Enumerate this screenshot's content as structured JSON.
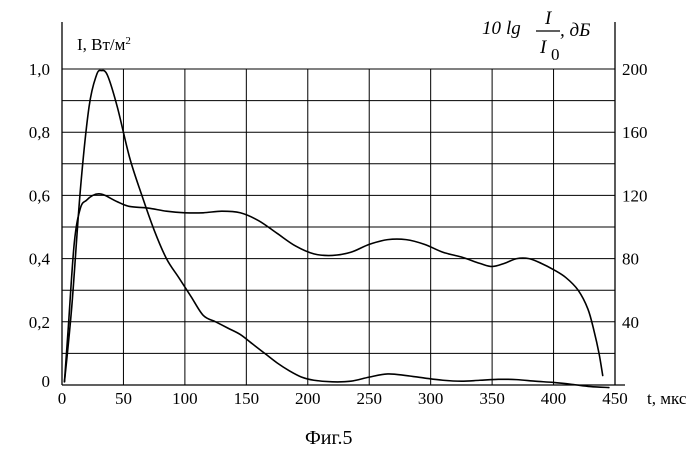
{
  "chart_data": {
    "type": "line",
    "caption": "Фиг.5",
    "xlabel": "t, мкс",
    "ylabel_left": {
      "text": "I, Вт/м",
      "superscript": "2"
    },
    "ylabel_right": {
      "prefix": "10",
      "func": "lg",
      "numerator": "I",
      "denominator": "I",
      "denominator_sub": "0",
      "suffix": ", дБ"
    },
    "xlim": [
      0,
      450
    ],
    "ylim_left": [
      0,
      1.0
    ],
    "ylim_right": [
      0,
      200
    ],
    "x_ticks": [
      0,
      50,
      100,
      150,
      200,
      250,
      300,
      350,
      400,
      450
    ],
    "x_tick_labels": [
      "0",
      "50",
      "100",
      "150",
      "200",
      "250",
      "300",
      "350",
      "400",
      "450"
    ],
    "y_left_ticks": [
      0,
      0.2,
      0.4,
      0.6,
      0.8,
      1.0
    ],
    "y_left_tick_labels": [
      "0",
      "0,2",
      "0,4",
      "0,6",
      "0,8",
      "1,0"
    ],
    "y_right_ticks": [
      40,
      80,
      120,
      160,
      200
    ],
    "y_right_tick_labels": [
      "40",
      "80",
      "120",
      "160",
      "200"
    ],
    "grid": true,
    "series": [
      {
        "axis": "left",
        "x": [
          2,
          8,
          15,
          22,
          28,
          32,
          37,
          45,
          55,
          65,
          75,
          85,
          95,
          105,
          115,
          125,
          135,
          145,
          155,
          165,
          175,
          185,
          195,
          205,
          220,
          235,
          250,
          265,
          280,
          295,
          310,
          325,
          340,
          355,
          370,
          385,
          400,
          415,
          430,
          445
        ],
        "y": [
          0.01,
          0.25,
          0.62,
          0.88,
          0.98,
          0.995,
          0.98,
          0.88,
          0.72,
          0.6,
          0.49,
          0.4,
          0.34,
          0.28,
          0.22,
          0.2,
          0.18,
          0.16,
          0.13,
          0.1,
          0.07,
          0.045,
          0.025,
          0.015,
          0.01,
          0.012,
          0.025,
          0.035,
          0.03,
          0.022,
          0.015,
          0.012,
          0.015,
          0.018,
          0.017,
          0.012,
          0.008,
          0.002,
          -0.005,
          -0.008
        ]
      },
      {
        "axis": "right",
        "x": [
          2,
          5,
          10,
          15,
          20,
          25,
          30,
          35,
          45,
          55,
          70,
          85,
          100,
          115,
          130,
          145,
          160,
          175,
          190,
          205,
          220,
          235,
          250,
          265,
          280,
          295,
          310,
          325,
          340,
          350,
          360,
          370,
          380,
          390,
          400,
          410,
          420,
          428,
          433,
          437,
          440
        ],
        "y": [
          2,
          35,
          90,
          112,
          117,
          120,
          121,
          120,
          116,
          113,
          112,
          110,
          109,
          109,
          110,
          109,
          104,
          96,
          88,
          83,
          82,
          84,
          89,
          92,
          92,
          89,
          84,
          81,
          77,
          75,
          77,
          80,
          80,
          77,
          73,
          68,
          60,
          48,
          34,
          20,
          6
        ]
      }
    ]
  }
}
